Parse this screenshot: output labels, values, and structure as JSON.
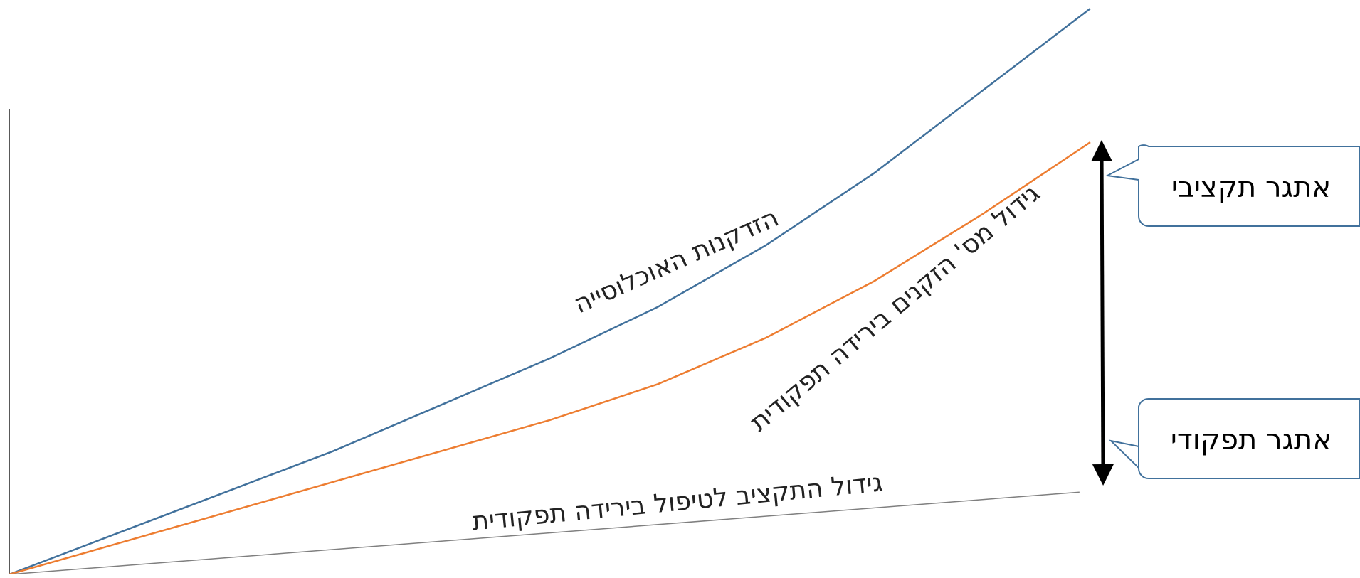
{
  "chart_data": {
    "type": "line",
    "title": "",
    "xlabel": "",
    "ylabel": "",
    "xlim": [
      0,
      100
    ],
    "ylim": [
      0,
      100
    ],
    "grid": false,
    "colors": {
      "blue": "#41719C",
      "orange": "#ED7D31",
      "gray": "#7F7F7F",
      "axis": "#595959",
      "arrow": "#000000",
      "callout_border": "#41719C"
    },
    "series": [
      {
        "label": "הזדקנות האוכלוסייה",
        "color": "#41719C",
        "x": [
          0,
          10,
          20,
          30,
          40,
          50,
          60,
          70,
          80,
          90,
          100
        ],
        "y": [
          0,
          8,
          16,
          24,
          33,
          42,
          52,
          64,
          78,
          94,
          110
        ]
      },
      {
        "label": "גידול מס' הזקנים בירידה תפקודית",
        "color": "#ED7D31",
        "x": [
          0,
          10,
          20,
          30,
          40,
          50,
          60,
          70,
          80,
          90,
          100
        ],
        "y": [
          0,
          6,
          12,
          18,
          24,
          30,
          37,
          46,
          57,
          70,
          84
        ]
      },
      {
        "label": "גידול התקציב לטיפול בירידה תפקודית",
        "color": "#7F7F7F",
        "x": [
          0,
          99
        ],
        "y": [
          0,
          16
        ]
      }
    ],
    "annotations": {
      "budget_challenge": "אתגר תקציבי",
      "functional_challenge": "אתגר תפקודי"
    }
  }
}
